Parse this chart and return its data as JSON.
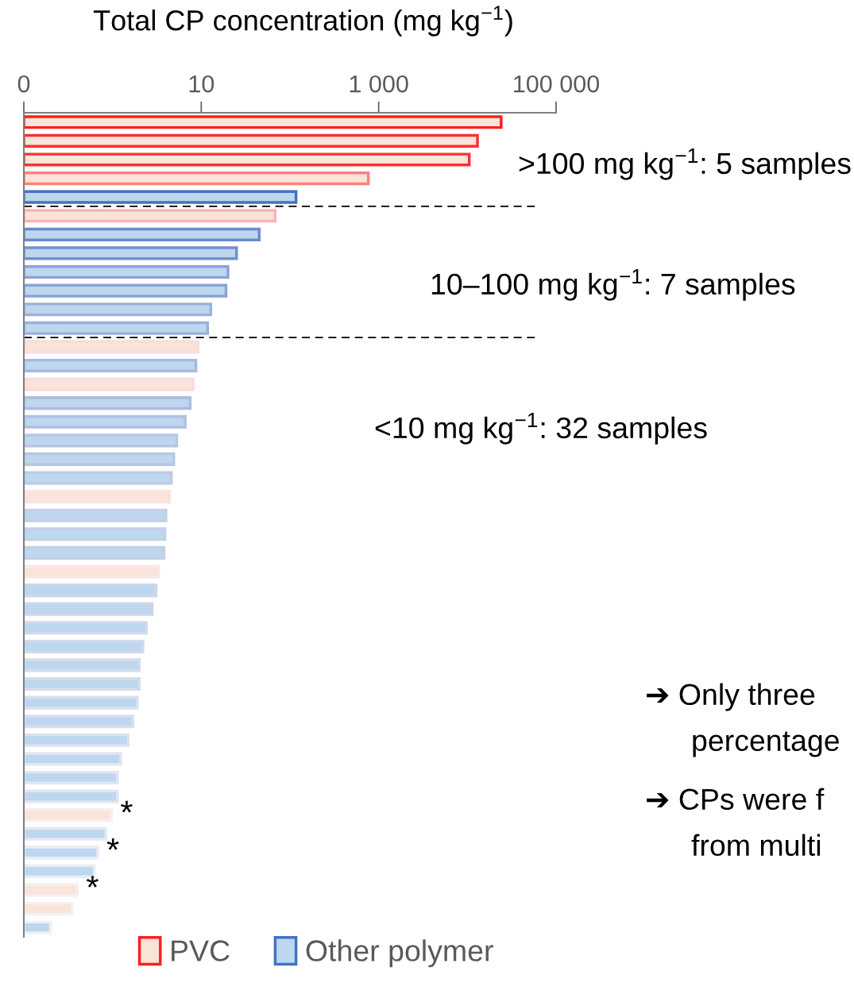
{
  "chart_data": {
    "type": "bar",
    "orientation": "horizontal",
    "log": "x",
    "xlabel": "Total CP concentration (mg kg$^{−1}$)",
    "xlim": [
      0.1,
      100000
    ],
    "xticks": [
      {
        "value": 0.1,
        "label": "0"
      },
      {
        "value": 10,
        "label": "10"
      },
      {
        "value": 1000,
        "label": "1 000"
      },
      {
        "value": 100000,
        "label": "100 000"
      }
    ],
    "categories": [
      null,
      null,
      null,
      null,
      null,
      null,
      null,
      null,
      null,
      null,
      null,
      null,
      null,
      null,
      null,
      null,
      null,
      null,
      null,
      null,
      null,
      null,
      null,
      null,
      null,
      null,
      null,
      null,
      null,
      null,
      null,
      null,
      null,
      null,
      null,
      null,
      null,
      null,
      null,
      null,
      null,
      null,
      null,
      null
    ],
    "series": [
      {
        "name": "PVC",
        "color": "#fae3d8",
        "values": [
          24000,
          13000,
          10500,
          765,
          null,
          68,
          null,
          null,
          null,
          null,
          null,
          null,
          9.2,
          null,
          8.1,
          null,
          null,
          null,
          null,
          null,
          4.4,
          null,
          null,
          null,
          3.3,
          null,
          null,
          null,
          null,
          null,
          null,
          null,
          null,
          null,
          null,
          null,
          null,
          0.97,
          null,
          null,
          null,
          0.4,
          0.35,
          null
        ],
        "colors": [
          "#ff2020",
          "#ff3030",
          "#ff3030",
          "#ff8080",
          null,
          "#ffb0b8",
          null,
          null,
          null,
          null,
          null,
          null,
          "#fadce0",
          null,
          "#fadce0",
          null,
          null,
          null,
          null,
          null,
          "#fae3e3",
          null,
          null,
          null,
          "#fae8e8",
          null,
          null,
          null,
          null,
          null,
          null,
          null,
          null,
          null,
          null,
          null,
          null,
          "#f6eeee",
          null,
          null,
          null,
          "#f6eeee",
          "#f4f0f4",
          null
        ],
        "value_labels": [
          null,
          null,
          null,
          null,
          null,
          null,
          null,
          null,
          null,
          null,
          null,
          null,
          null,
          null,
          null,
          null,
          null,
          null,
          null,
          null,
          null,
          null,
          null,
          null,
          null,
          null,
          null,
          null,
          null,
          null,
          null,
          null,
          null,
          null,
          null,
          null,
          null,
          "*",
          null,
          null,
          null,
          "*",
          null,
          null
        ]
      },
      {
        "name": "Other polymer",
        "color": "#bdd7ee",
        "values": [
          null,
          null,
          null,
          null,
          117,
          null,
          45,
          25,
          20,
          19,
          12.8,
          11.8,
          null,
          8.7,
          null,
          7.5,
          6.6,
          5.3,
          4.9,
          4.6,
          null,
          4.0,
          3.9,
          3.8,
          null,
          3.1,
          2.8,
          2.4,
          2.2,
          2.0,
          2.0,
          1.9,
          1.7,
          1.5,
          1.24,
          1.14,
          1.14,
          null,
          0.84,
          0.68,
          0.62,
          null,
          null,
          0.2
        ],
        "colors": [
          null,
          null,
          null,
          null,
          "#4472c4",
          null,
          "#6a8ad0",
          "#7090d0",
          "#8aa2d8",
          "#8aa2d8",
          "#9ab0dc",
          "#9ab0dc",
          null,
          "#a8b8e0",
          null,
          "#acbce0",
          "#b0c0e2",
          "#b8c6e4",
          "#b8c6e4",
          "#bccae6",
          null,
          "#c4d0e8",
          "#c4d0e8",
          "#c4d0e8",
          null,
          "#ccd6ec",
          "#ccd6ec",
          "#d0daec",
          "#d0daec",
          "#d4dcee",
          "#d4dcee",
          "#d8e0f0",
          "#d8e0f0",
          "#dce2f0",
          "#e0e6f2",
          "#e0e6f2",
          "#e0e6f2",
          null,
          "#e4e8f4",
          "#e8ecf6",
          "#e8ecf6",
          null,
          null,
          "#eef0f8"
        ],
        "value_labels": [
          null,
          null,
          null,
          null,
          null,
          null,
          null,
          null,
          null,
          null,
          null,
          null,
          null,
          null,
          null,
          null,
          null,
          null,
          null,
          null,
          null,
          null,
          null,
          null,
          null,
          null,
          null,
          null,
          null,
          null,
          null,
          null,
          null,
          null,
          null,
          null,
          null,
          null,
          null,
          "*",
          null,
          null,
          null,
          null
        ]
      }
    ],
    "annotations": [
      ">100 mg kg$^{−1}$: 5 samples",
      "10–100 mg kg$^{−1}$: 7 samples",
      "<10 mg kg$^{−1}$: 32 samples",
      "➔ Only three",
      "percentage",
      "➔ CPs were f",
      "from multi"
    ],
    "legend": "bottom",
    "grid": false
  }
}
